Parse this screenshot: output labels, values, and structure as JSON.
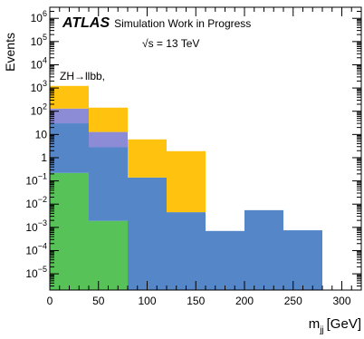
{
  "chart_data": {
    "type": "bar",
    "subtype": "stacked-histogram",
    "ylabel": "Events",
    "xlabel_main": "m",
    "xlabel_sub": "jj",
    "xlabel_unit": "[GeV]",
    "y_scale": "log",
    "ylim": [
      2e-06,
      3000000
    ],
    "xlim": [
      0,
      320
    ],
    "grid": false,
    "x_ticks": [
      0,
      50,
      100,
      150,
      200,
      250,
      300
    ],
    "x_tick_labels": [
      "0",
      "50",
      "100",
      "150",
      "200",
      "250",
      "300"
    ],
    "y_ticks": [
      {
        "value": 1000000,
        "base": "10",
        "exp": "6"
      },
      {
        "value": 100000,
        "base": "10",
        "exp": "5"
      },
      {
        "value": 10000,
        "base": "10",
        "exp": "4"
      },
      {
        "value": 1000,
        "base": "10",
        "exp": "3"
      },
      {
        "value": 100,
        "base": "10",
        "exp": "2"
      },
      {
        "value": 10,
        "base": "10",
        "exp": ""
      },
      {
        "value": 1,
        "base": "1",
        "exp": ""
      },
      {
        "value": 0.1,
        "base": "10",
        "exp": "−1"
      },
      {
        "value": 0.01,
        "base": "10",
        "exp": "−2"
      },
      {
        "value": 0.001,
        "base": "10",
        "exp": "−3"
      },
      {
        "value": 0.0001,
        "base": "10",
        "exp": "−4"
      },
      {
        "value": 1e-05,
        "base": "10",
        "exp": "−5"
      }
    ],
    "bins": [
      {
        "x0": 0,
        "x1": 40
      },
      {
        "x0": 40,
        "x1": 80
      },
      {
        "x0": 80,
        "x1": 120
      },
      {
        "x0": 120,
        "x1": 160
      },
      {
        "x0": 160,
        "x1": 200
      },
      {
        "x0": 200,
        "x1": 240
      },
      {
        "x0": 240,
        "x1": 280
      }
    ],
    "series": [
      {
        "color": "#57c257",
        "values": [
          0.22,
          0.0019,
          0,
          0,
          0,
          0,
          0
        ]
      },
      {
        "color": "#5486c8",
        "values": [
          30,
          2.8,
          0.14,
          0.0045,
          0.0007,
          0.0055,
          0.00075
        ]
      },
      {
        "color": "#8b8bd6",
        "values": [
          100,
          10,
          0,
          0,
          0,
          0,
          0
        ]
      },
      {
        "color": "#ffc20e",
        "values": [
          1100,
          130,
          6,
          1.9,
          0,
          0,
          0
        ]
      }
    ]
  },
  "labels": {
    "atlas": "ATLAS",
    "atlas_sub": "Simulation Work in Progress",
    "energy": "√s = 13 TeV",
    "process": "ZH→llbb,"
  }
}
